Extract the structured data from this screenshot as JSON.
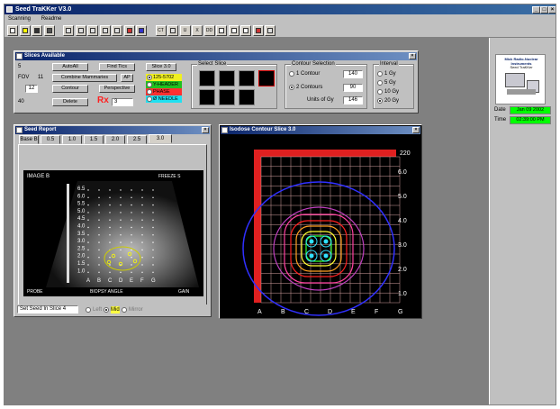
{
  "app": {
    "title": "Seed TraKKer V3.0",
    "menu": [
      "Scanning",
      "Readme"
    ]
  },
  "toolbar": {
    "icons": [
      "new-icon",
      "open-icon",
      "save-icon",
      "print-icon",
      "layout-icon",
      "window-icon",
      "window2-icon",
      "undo-icon",
      "chart-icon",
      "color-icon",
      "lock-icon",
      "ct-icon",
      "tile-icon",
      "u-icon",
      "x-icon",
      "dd-icon",
      "card-icon",
      "box-icon",
      "cursor-icon",
      "star-icon",
      "help-icon"
    ],
    "ct_label": "CT",
    "u_label": "U",
    "x_label": "X",
    "dd_label": "DD"
  },
  "slices_available": {
    "title": "Slices Available",
    "row1_value": "5",
    "fov_label": "FOV",
    "fov_value": "11",
    "fov2_value": "12",
    "slot4_value": "40",
    "buttons": {
      "all": "AutoAll",
      "find": "Find Tics",
      "slice": "Slice 3.0",
      "combine": "Combine Mammaries",
      "ap": "AP",
      "contour": "Contour",
      "perspective": "Perspective",
      "delete": "Delete"
    },
    "rx_label": "Rx",
    "rx_value": "3",
    "color_rows": [
      {
        "label": "125-5702",
        "color": "#f0f020"
      },
      {
        "label": "Y-HEADER",
        "color": "#20c020"
      },
      {
        "label": "PHASE",
        "color": "#ff3030"
      },
      {
        "label": "Ø NEEDLE",
        "color": "#20e0f0"
      }
    ],
    "select_slice": "Select Slice",
    "contour_selection": "Contour Selection",
    "contour_1": "1 Contour",
    "contour_1_value": "140",
    "contour_2": "2 Contours",
    "contour_2_value": "90",
    "units_label": "Units of Gy",
    "units_value": "146",
    "interval": "Interval",
    "interval_options": [
      "1 Gy",
      "5 Gy",
      "10 Gy",
      "20 Gy"
    ],
    "interval_selected": 3
  },
  "seed_report": {
    "title": "Seed Report",
    "tabs": [
      "Base B",
      "0.5",
      "1.0",
      "1.5",
      "2.0",
      "2.5",
      "3.0"
    ],
    "active_tab": 6,
    "us_overlay_left": "IMAGE B",
    "us_overlay_right": "FREEZE S",
    "depth_labels": [
      "6.5",
      "6.0",
      "5.5",
      "5.0",
      "4.5",
      "4.0",
      "3.5",
      "3.0",
      "2.5",
      "2.0",
      "1.5",
      "1.0"
    ],
    "grid_letters": [
      "A",
      "B",
      "C",
      "D",
      "E",
      "F",
      "G"
    ],
    "us_footer_left": "PROBE",
    "us_footer_mid": "BIOPSY  ANGLE",
    "us_footer_right": "GAIN",
    "status_label": "Set Seed In Slice",
    "status_value": "4",
    "status_options": [
      "Left",
      "Mid",
      "Mirror"
    ]
  },
  "isodose": {
    "title": "Isodose Contour Slice 3.0",
    "x_letters": [
      "A",
      "B",
      "C",
      "D",
      "E",
      "F",
      "G"
    ],
    "y_labels": [
      "6.0",
      "5.0",
      "4.0",
      "3.0",
      "2.0",
      "1.0"
    ],
    "top_value": "220"
  },
  "sidebar": {
    "logo_text": "Mick Radio-Nuclear Instruments",
    "logo_subtitle": "Seed TraKKer",
    "date_label": "Date",
    "date_value": "Jan 09 2002",
    "time_label": "Time",
    "time_value": "02:39:00 PM"
  },
  "colors": {
    "title_blue": "#0a246a",
    "green_field": "#00ff00",
    "red": "#ff2020"
  }
}
